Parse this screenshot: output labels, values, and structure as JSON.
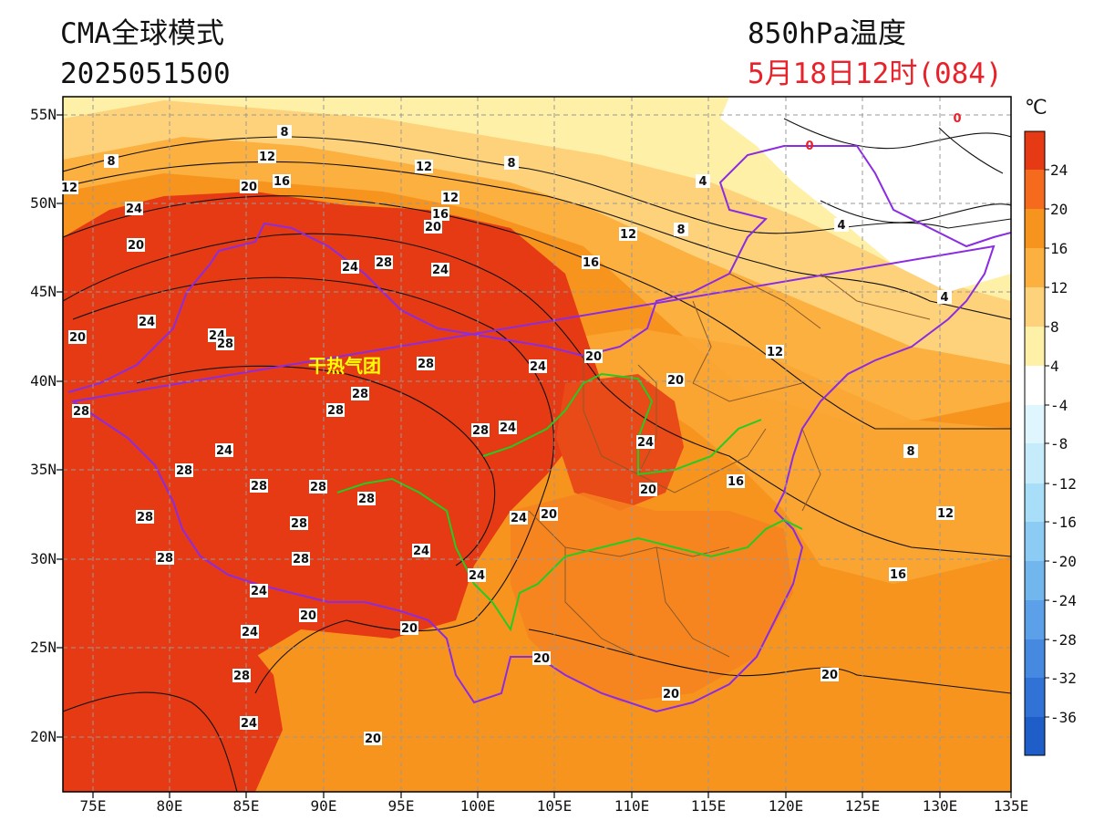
{
  "header": {
    "model": "CMA全球模式",
    "init_time": "2025051500",
    "variable": "850hPa温度",
    "valid_time": "5月18日12时(084)"
  },
  "map": {
    "lat_labels": [
      "55N",
      "50N",
      "45N",
      "40N",
      "35N",
      "30N",
      "25N",
      "20N"
    ],
    "lon_labels": [
      "75E",
      "80E",
      "85E",
      "90E",
      "95E",
      "100E",
      "105E",
      "110E",
      "115E",
      "120E",
      "125E",
      "130E",
      "135E"
    ],
    "annotation": "干热气团",
    "contour_labels": [
      "8",
      "12",
      "16",
      "20",
      "24",
      "28",
      "4",
      "0"
    ]
  },
  "colorbar": {
    "unit": "℃",
    "labels": [
      "24",
      "20",
      "16",
      "12",
      "8",
      "4",
      "-4",
      "-8",
      "-12",
      "-16",
      "-20",
      "-24",
      "-28",
      "-32",
      "-36"
    ],
    "colors": [
      "#e63a14",
      "#f56a1c",
      "#f7941e",
      "#fbb040",
      "#fdd27a",
      "#fff0a8",
      "#ffffff",
      "#e0f6ff",
      "#c6ecfb",
      "#a8def8",
      "#8ccbf3",
      "#72b6ee",
      "#5ba0e8",
      "#4689e0",
      "#3172d6",
      "#1f5ec9"
    ]
  },
  "colors": {
    "province_border": "#8b5a2b",
    "national_border": "#8b2be2",
    "river": "#22cc22",
    "valid_time": "#e8222a"
  }
}
